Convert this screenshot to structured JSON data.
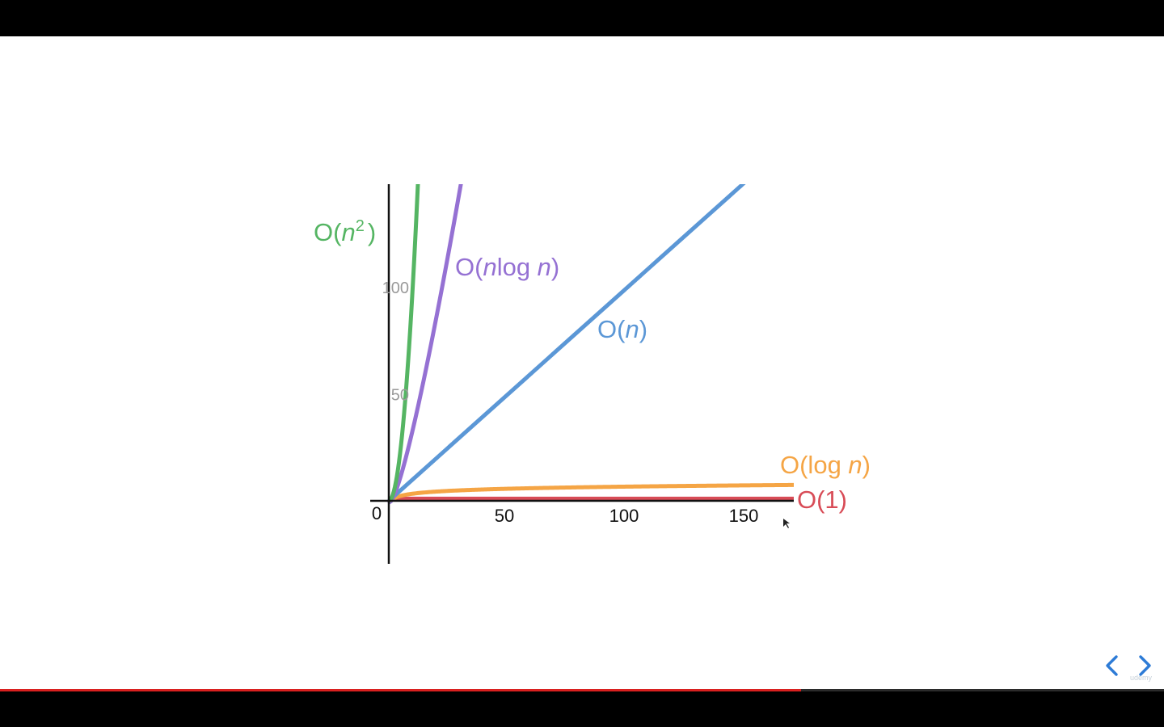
{
  "chart_data": {
    "type": "line",
    "x_ticks": [
      "50",
      "100",
      "150"
    ],
    "y_ticks": [
      "50",
      "100"
    ],
    "origin_label": "0",
    "xlim": [
      0,
      170
    ],
    "ylim": [
      -28,
      133
    ],
    "series": [
      {
        "name": "O(n²)",
        "label": {
          "base": "O(",
          "var": "n",
          "sup": "2",
          "end": ")"
        },
        "color": "#55b563",
        "func": "square",
        "x": [
          0,
          2,
          4,
          6,
          8,
          10,
          11.6
        ],
        "y": [
          0,
          4,
          16,
          36,
          64,
          100,
          134
        ]
      },
      {
        "name": "O(nlog n)",
        "label": {
          "base": "O(",
          "var": "n",
          "mid": "log ",
          "var2": "n",
          "end": ")"
        },
        "color": "#9571d3",
        "func": "nlogn",
        "x": [
          1,
          5,
          10,
          15,
          20,
          25,
          30
        ],
        "y": [
          0,
          11.6,
          33.2,
          58.6,
          86.4,
          116,
          147
        ]
      },
      {
        "name": "O(n)",
        "label": {
          "base": "O(",
          "var": "n",
          "end": ")"
        },
        "color": "#5b97d6",
        "func": "linear",
        "x": [
          0,
          148
        ],
        "y": [
          0,
          148
        ]
      },
      {
        "name": "O(log n)",
        "label": {
          "base": "O(log ",
          "var": "n",
          "end": ")"
        },
        "color": "#f5a545",
        "func": "log",
        "x": [
          1,
          10,
          50,
          100,
          170
        ],
        "y": [
          0,
          3.3,
          5.6,
          6.6,
          7.4
        ]
      },
      {
        "name": "O(1)",
        "label": {
          "base": "O(1)"
        },
        "color": "#d84c57",
        "func": "const",
        "x": [
          0,
          170
        ],
        "y": [
          1,
          1
        ]
      }
    ]
  },
  "progress": {
    "fraction": 0.688,
    "color": "#d9201f"
  },
  "nav": {
    "prev_icon": "chevron-left-icon",
    "next_icon": "chevron-right-icon",
    "color": "#2d7bd6"
  },
  "watermark": "udemy"
}
